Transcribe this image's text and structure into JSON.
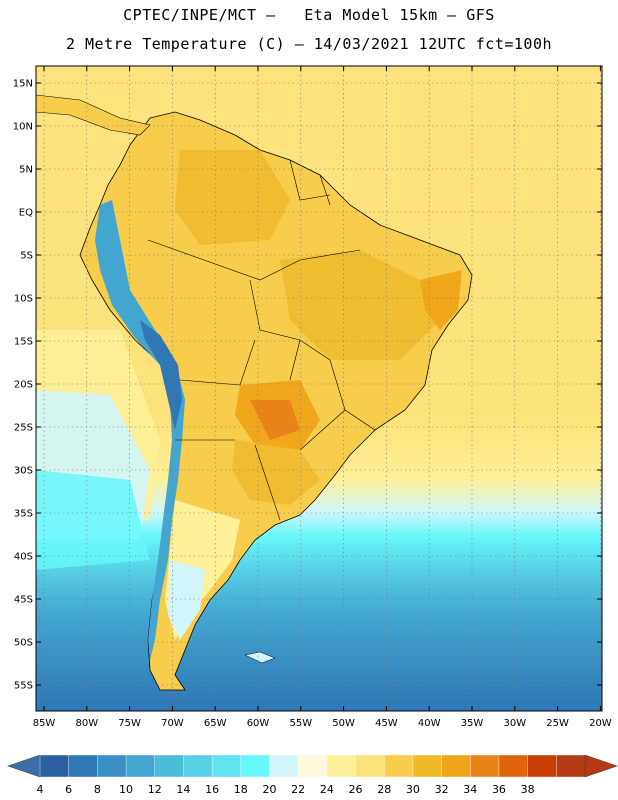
{
  "header": {
    "title_line1": "CPTEC/INPE/MCT –   Eta Model 15km – GFS",
    "title_line2": "2 Metre Temperature (C) – 14/03/2021 12UTC fct=100h"
  },
  "map": {
    "lat_ticks": [
      "15N",
      "10N",
      "5N",
      "EQ",
      "5S",
      "10S",
      "15S",
      "20S",
      "25S",
      "30S",
      "35S",
      "40S",
      "45S",
      "50S",
      "55S"
    ],
    "lon_ticks": [
      "85W",
      "80W",
      "75W",
      "70W",
      "65W",
      "60W",
      "55W",
      "50W",
      "45W",
      "40W",
      "35W",
      "30W",
      "25W",
      "20W"
    ]
  },
  "colorbar": {
    "labels": [
      "4",
      "6",
      "8",
      "10",
      "12",
      "14",
      "16",
      "18",
      "20",
      "22",
      "24",
      "26",
      "28",
      "30",
      "32",
      "34",
      "36",
      "38"
    ],
    "colors": [
      "#2a5fa0",
      "#2f77b5",
      "#3a90c4",
      "#43a6d1",
      "#4cbcdb",
      "#57d0e6",
      "#5ee3ef",
      "#66f7fb",
      "#d2f6fb",
      "#fff8dc",
      "#fff199",
      "#fce27a",
      "#f7cd4b",
      "#f0ba2c",
      "#f0a418",
      "#e88418",
      "#e0620a",
      "#c63d05",
      "#b33a15"
    ],
    "low_color": "#3b6ea8",
    "high_color": "#b33a15"
  }
}
